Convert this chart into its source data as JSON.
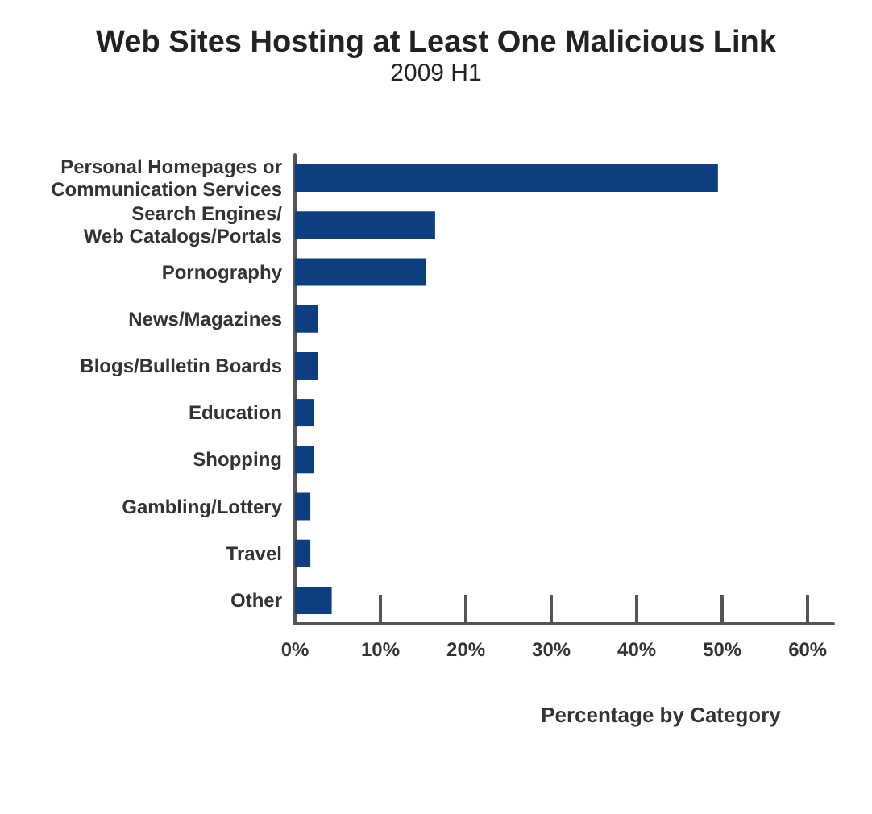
{
  "chart_data": {
    "type": "bar",
    "orientation": "horizontal",
    "title": "Web Sites Hosting at Least One Malicious Link",
    "subtitle": "2009 H1",
    "xlabel": "Percentage by Category",
    "categories": [
      "Personal Homepages or\nCommunication Services",
      "Search Engines/\nWeb Catalogs/Portals",
      "Pornography",
      "News/Magazines",
      "Blogs/Bulletin Boards",
      "Education",
      "Shopping",
      "Gambling/Lottery",
      "Travel",
      "Other"
    ],
    "values": [
      49.5,
      16.4,
      15.3,
      2.7,
      2.7,
      2.2,
      2.2,
      1.8,
      1.8,
      4.3
    ],
    "color": "#0d3f80",
    "xlim": [
      0,
      63
    ],
    "xticks": [
      {
        "value": 0,
        "label": "0%"
      },
      {
        "value": 10,
        "label": "10%"
      },
      {
        "value": 20,
        "label": "20%"
      },
      {
        "value": 30,
        "label": "30%"
      },
      {
        "value": 40,
        "label": "40%"
      },
      {
        "value": 50,
        "label": "50%"
      },
      {
        "value": 60,
        "label": "60%"
      }
    ]
  }
}
